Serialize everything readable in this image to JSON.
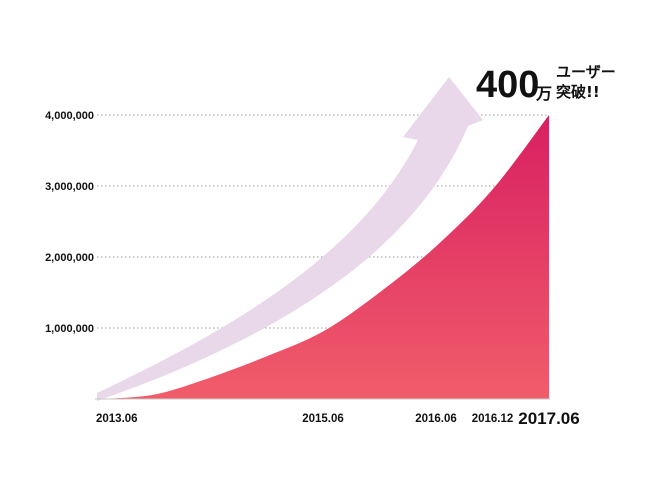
{
  "chart_data": {
    "type": "area",
    "title": "",
    "xlabel": "",
    "ylabel": "",
    "x_tick_labels": [
      "2013.06",
      "2015.06",
      "2016.06",
      "2016.12",
      "2017.06"
    ],
    "y_tick_labels": [
      "1,000,000",
      "2,000,000",
      "3,000,000",
      "4,000,000"
    ],
    "y_ticks": [
      1000000,
      2000000,
      3000000,
      4000000
    ],
    "ylim": [
      0,
      4000000
    ],
    "xlim": [
      "2013.06",
      "2017.06"
    ],
    "grid": "horizontal-dotted",
    "series": [
      {
        "x": [
          "2013.06",
          "2013.12",
          "2014.06",
          "2014.12",
          "2015.06",
          "2015.12",
          "2016.06",
          "2016.12",
          "2017.06"
        ],
        "values": [
          0,
          60000,
          300000,
          600000,
          950000,
          1500000,
          2150000,
          2950000,
          4000000
        ]
      }
    ],
    "annotation": {
      "number": "400",
      "unit": "万",
      "line1": "ユーザー",
      "line2": "突破!!"
    },
    "colors": {
      "area_top": "#d81f62",
      "area_bottom": "#f15d6a",
      "arrow": "#e8d8ea"
    }
  }
}
